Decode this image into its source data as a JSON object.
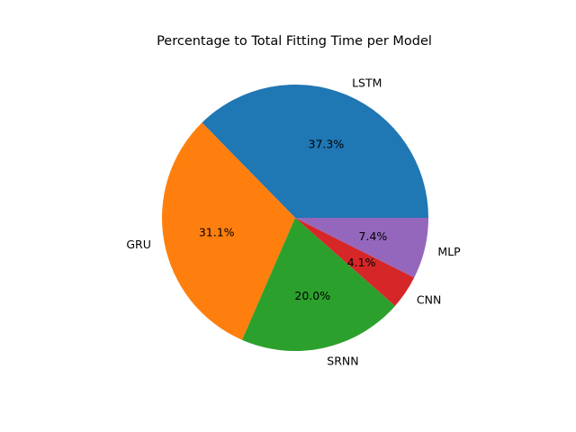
{
  "chart_data": {
    "type": "pie",
    "title": "Percentage to Total Fitting Time per Model",
    "start_angle_deg": 0,
    "direction": "counterclockwise",
    "slices": [
      {
        "label": "LSTM",
        "percent_label": "37.3%",
        "value": 37.3,
        "color": "#1f77b4"
      },
      {
        "label": "GRU",
        "percent_label": "31.1%",
        "value": 31.1,
        "color": "#ff7f0e"
      },
      {
        "label": "SRNN",
        "percent_label": "20.0%",
        "value": 20.0,
        "color": "#2ca02c"
      },
      {
        "label": "CNN",
        "percent_label": "4.1%",
        "value": 4.1,
        "color": "#d62728"
      },
      {
        "label": "MLP",
        "percent_label": "7.4%",
        "value": 7.4,
        "color": "#9467bd"
      }
    ],
    "legend": "none",
    "grid": false
  }
}
